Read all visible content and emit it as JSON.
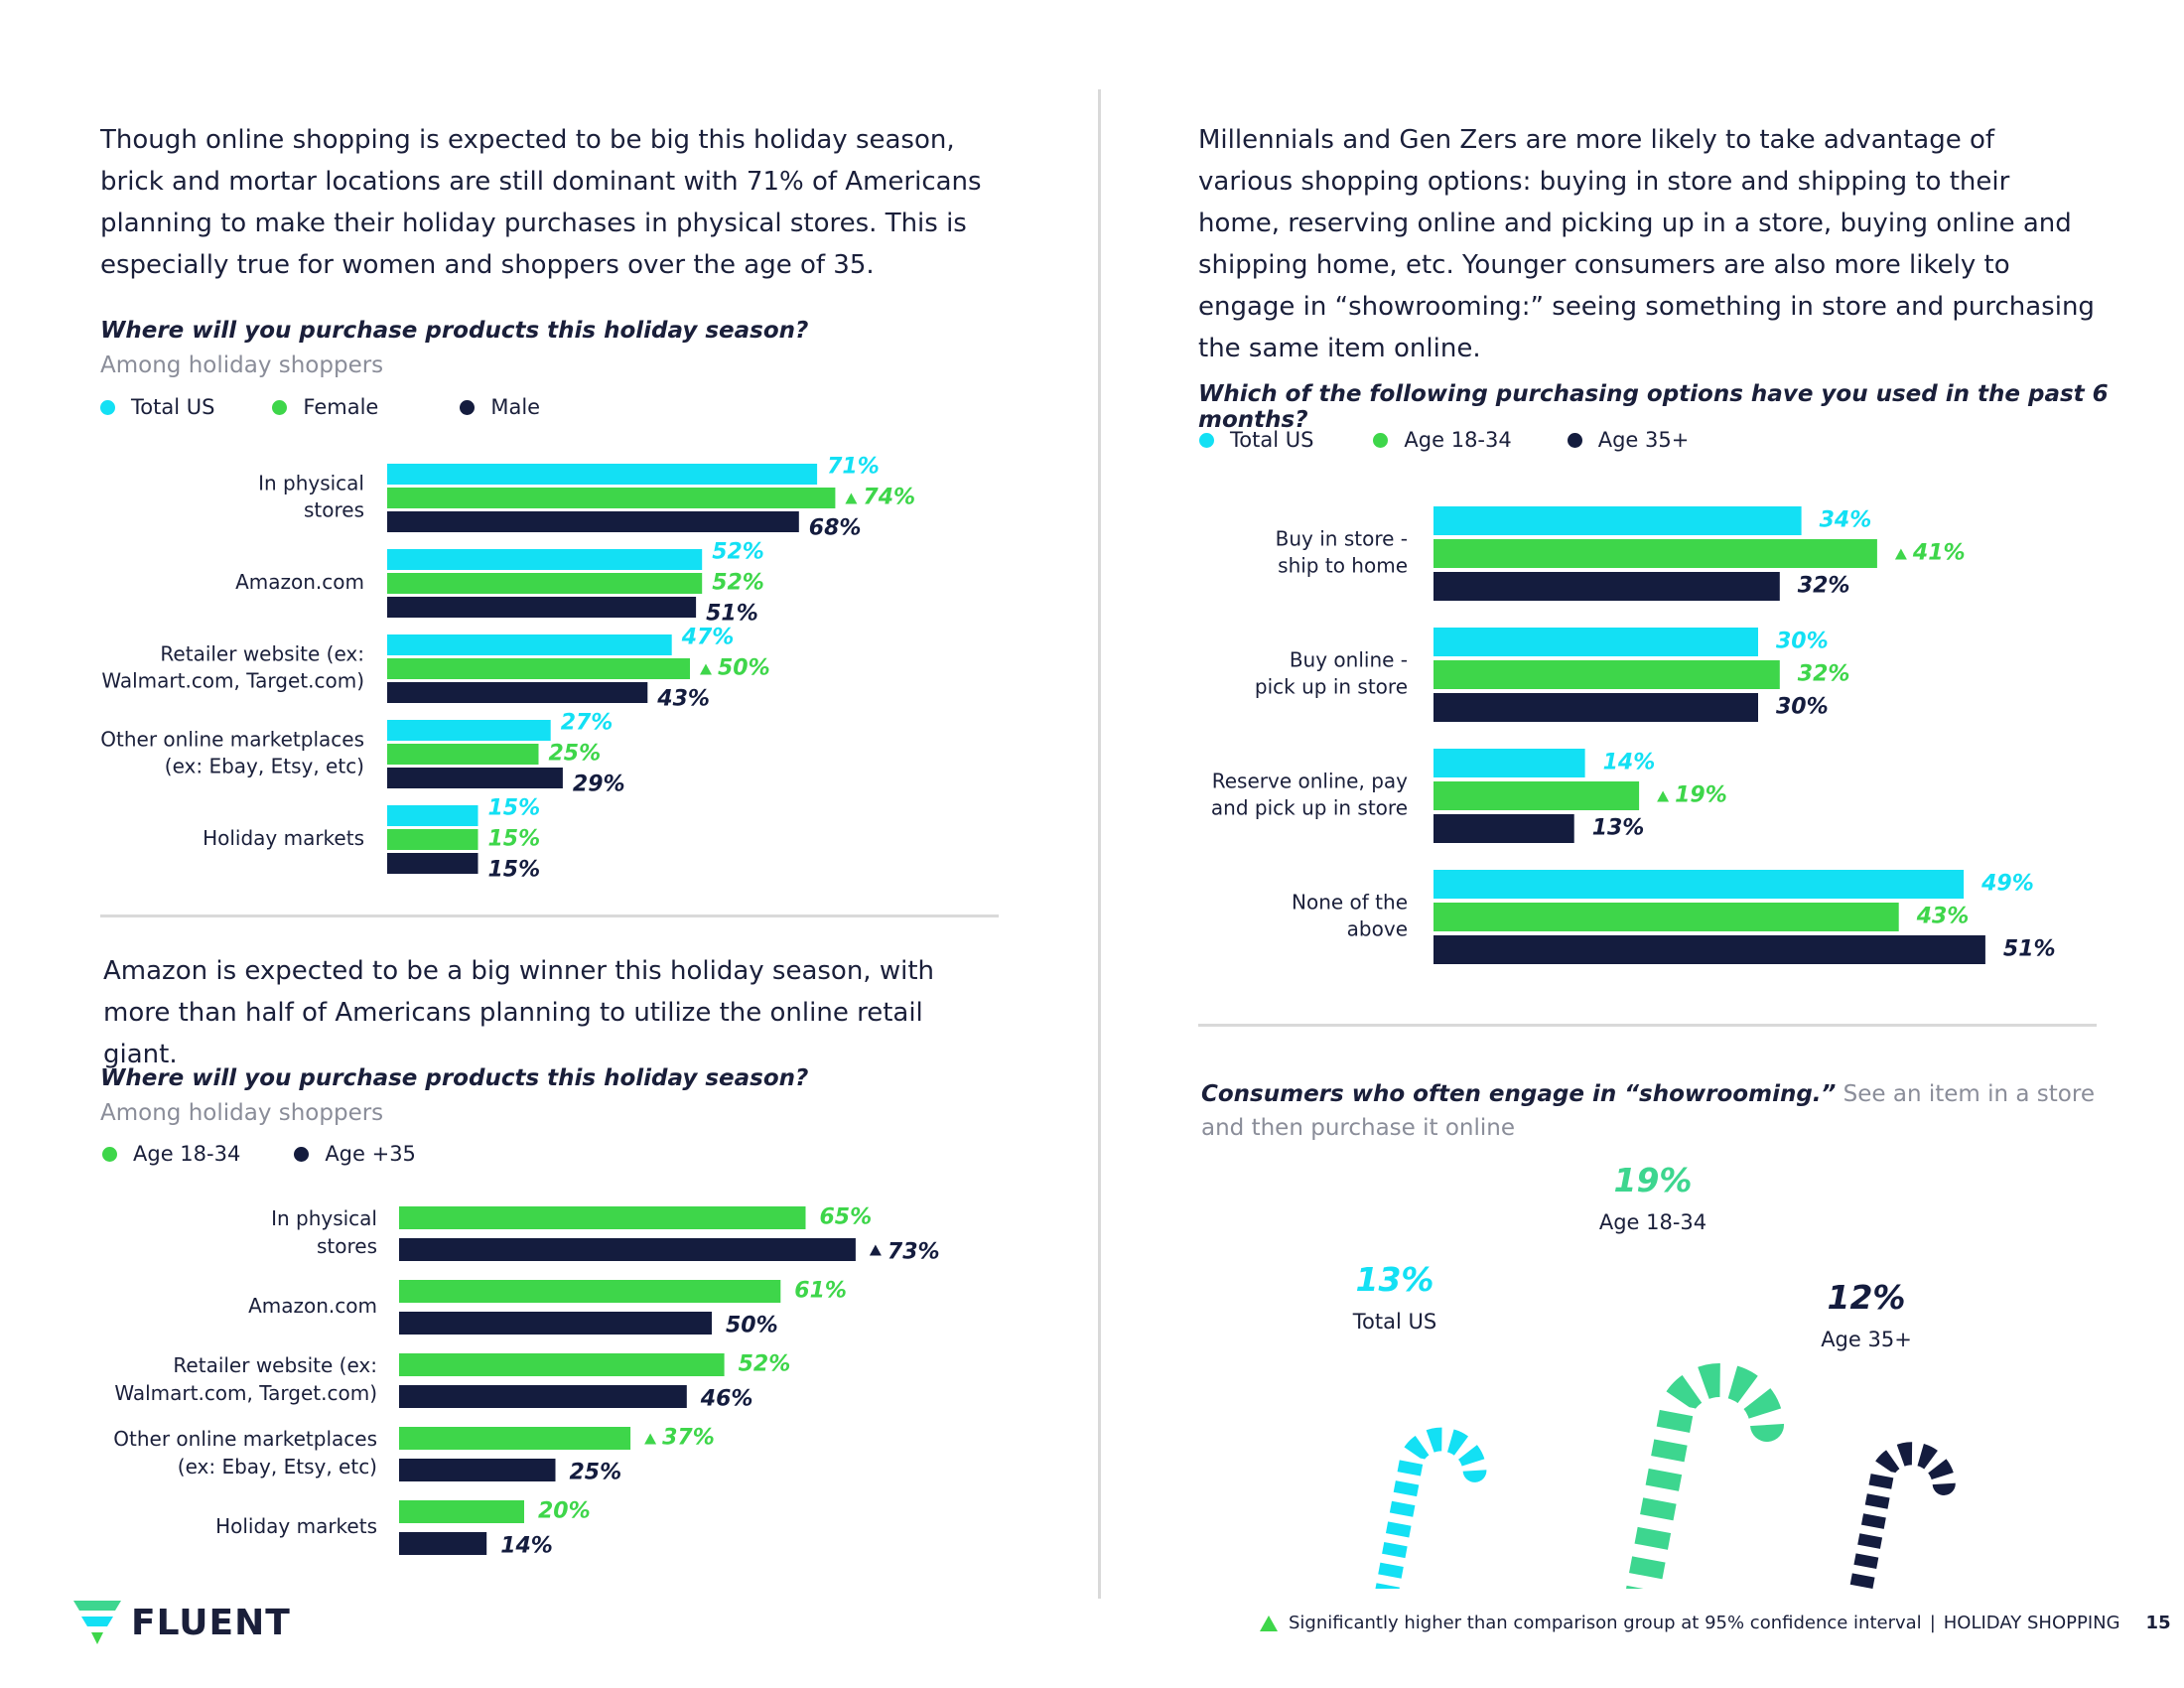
{
  "colors": {
    "cyan": "#13e0f4",
    "green": "#3ed64a",
    "navy": "#141c3e",
    "mint": "#3dd68f",
    "grey": "#8a8d99"
  },
  "left": {
    "intro": "Though online shopping is expected to be big this holiday season, brick and mortar locations are still dominant with 71% of Americans planning to make their holiday purchases in physical stores. This is especially true for women and shoppers over the age of 35.",
    "chart1_question": "Where will you purchase products this holiday season?",
    "chart1_sub": "Among holiday shoppers",
    "chart1_legend": [
      "Total US",
      "Female",
      "Male"
    ],
    "para2": "Amazon is expected to be a big winner this holiday season, with more than half of Americans planning to utilize the online retail giant.",
    "chart2_question": "Where will you purchase products this holiday season?",
    "chart2_sub": "Among holiday shoppers",
    "chart2_legend": [
      "Age 18-34",
      "Age +35"
    ]
  },
  "right": {
    "intro": "Millennials and Gen Zers are more likely to take advantage of various shopping options:  buying in store and shipping to their home, reserving online and picking up in a store, buying online and shipping home, etc. Younger consumers are also more likely to engage in “showrooming:” seeing something in store and purchasing the same item online.",
    "chart3_question": "Which of the following purchasing options have you used in the past 6 months?",
    "chart3_legend": [
      "Total US",
      "Age 18-34",
      "Age 35+"
    ],
    "show_title_bold": "Consumers who often engage in “showrooming.”",
    "show_title_rest": " See an item in a store and then purchase it online"
  },
  "chart_data": [
    {
      "type": "bar",
      "title": "Where will you purchase products this holiday season?",
      "subtitle": "Among holiday shoppers",
      "categories": [
        [
          "In physical",
          "stores"
        ],
        [
          "Amazon.com"
        ],
        [
          "Retailer website (ex:",
          "Walmart.com, Target.com)"
        ],
        [
          "Other online marketplaces",
          "(ex: Ebay, Etsy, etc)"
        ],
        [
          "Holiday markets"
        ]
      ],
      "series": [
        {
          "name": "Total US",
          "color": "#13e0f4",
          "values": [
            71,
            52,
            47,
            27,
            15
          ],
          "labels": [
            "71%",
            "52%",
            "47%",
            "27%",
            "15%"
          ],
          "sig": [
            false,
            false,
            false,
            false,
            false
          ]
        },
        {
          "name": "Female",
          "color": "#3ed64a",
          "values": [
            74,
            52,
            50,
            25,
            15
          ],
          "labels": [
            "74%",
            "52%",
            "50%",
            "25%",
            "15%"
          ],
          "sig": [
            true,
            false,
            true,
            false,
            false
          ]
        },
        {
          "name": "Male",
          "color": "#141c3e",
          "values": [
            68,
            51,
            43,
            29,
            15
          ],
          "labels": [
            "68%",
            "51%",
            "43%",
            "29%",
            "15%"
          ],
          "sig": [
            false,
            false,
            false,
            false,
            false
          ]
        }
      ]
    },
    {
      "type": "bar",
      "title": "Where will you purchase products this holiday season?",
      "subtitle": "Among holiday shoppers",
      "categories": [
        [
          "In physical",
          "stores"
        ],
        [
          "Amazon.com"
        ],
        [
          "Retailer website (ex:",
          "Walmart.com, Target.com)"
        ],
        [
          "Other online marketplaces",
          "(ex: Ebay, Etsy, etc)"
        ],
        [
          "Holiday markets"
        ]
      ],
      "series": [
        {
          "name": "Age 18-34",
          "color": "#3ed64a",
          "values": [
            65,
            61,
            52,
            37,
            20
          ],
          "labels": [
            "65%",
            "61%",
            "52%",
            "37%",
            "20%"
          ],
          "sig": [
            false,
            false,
            false,
            true,
            false
          ]
        },
        {
          "name": "Age +35",
          "color": "#141c3e",
          "values": [
            73,
            50,
            46,
            25,
            14
          ],
          "labels": [
            "73%",
            "50%",
            "46%",
            "25%",
            "14%"
          ],
          "sig": [
            true,
            false,
            false,
            false,
            false
          ]
        }
      ]
    },
    {
      "type": "bar",
      "title": "Which of the following purchasing options have you used in the past 6 months?",
      "categories": [
        [
          "Buy in store -",
          "ship to home"
        ],
        [
          "Buy online -",
          "pick up in store"
        ],
        [
          "Reserve online, pay",
          "and pick up in store"
        ],
        [
          "None of the",
          "above"
        ]
      ],
      "series": [
        {
          "name": "Total US",
          "color": "#13e0f4",
          "values": [
            34,
            30,
            14,
            49
          ],
          "labels": [
            "34%",
            "30%",
            "14%",
            "49%"
          ],
          "sig": [
            false,
            false,
            false,
            false
          ]
        },
        {
          "name": "Age 18-34",
          "color": "#3ed64a",
          "values": [
            41,
            32,
            19,
            43
          ],
          "labels": [
            "41%",
            "32%",
            "19%",
            "43%"
          ],
          "sig": [
            true,
            false,
            true,
            false
          ]
        },
        {
          "name": "Age 35+",
          "color": "#141c3e",
          "values": [
            32,
            30,
            13,
            51
          ],
          "labels": [
            "32%",
            "30%",
            "13%",
            "51%"
          ],
          "sig": [
            false,
            false,
            false,
            false
          ]
        }
      ]
    },
    {
      "type": "pictogram",
      "title": "Consumers who often engage in “showrooming.” See an item in a store and then purchase it online",
      "items": [
        {
          "name": "Total US",
          "value": 13,
          "label": "13%",
          "color": "#13e0f4"
        },
        {
          "name": "Age 18-34",
          "value": 19,
          "label": "19%",
          "color": "#3dd68f"
        },
        {
          "name": "Age 35+",
          "value": 12,
          "label": "12%",
          "color": "#141c3e"
        }
      ]
    }
  ],
  "footer": {
    "logo": "FLUENT",
    "note": "Significantly higher than comparison group at 95% confidence interval",
    "section": "HOLIDAY SHOPPING",
    "page": "15"
  }
}
